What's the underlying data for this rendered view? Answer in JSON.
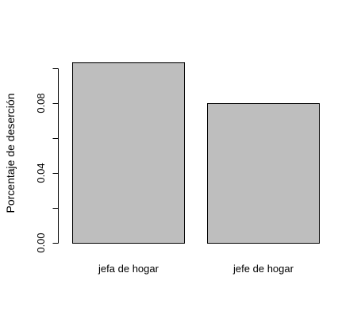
{
  "chart_data": {
    "type": "bar",
    "title": "",
    "xlabel": "",
    "ylabel": "Porcentaje de deserción",
    "categories": [
      "jefa de hogar",
      "jefe de hogar"
    ],
    "values": [
      0.1035,
      0.08
    ],
    "ylim": [
      0,
      0.1
    ],
    "yticks": [
      0.0,
      0.04,
      0.08
    ],
    "ytick_labels": [
      "0.00",
      "0.04",
      "0.08"
    ],
    "grid": false,
    "legend": "none",
    "bar_color": "#bebebe",
    "bar_border_color": "#000000",
    "axis_color": "#000000"
  }
}
